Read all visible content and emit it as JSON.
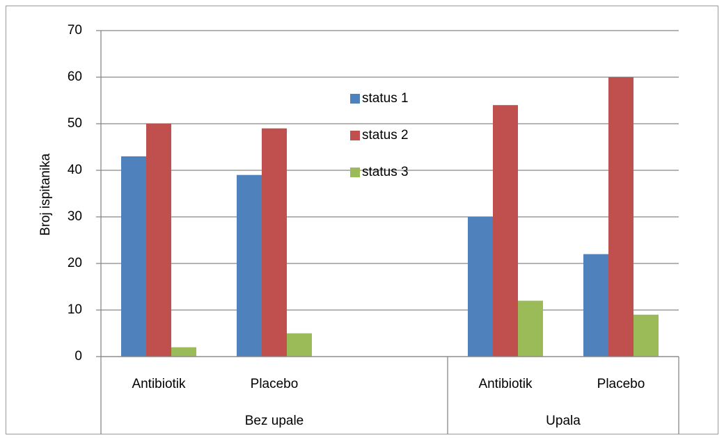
{
  "chart_data": {
    "type": "bar",
    "y_label": "Broj ispitanika",
    "groups": [
      {
        "name": "Bez upale",
        "categories": [
          "Antibiotik",
          "Placebo",
          null
        ]
      },
      {
        "name": "Upala",
        "categories": [
          "Antibiotik",
          "Placebo"
        ]
      }
    ],
    "series": [
      {
        "name": "status 1",
        "color": "#4f81bd",
        "values": [
          43,
          39,
          null,
          30,
          22
        ]
      },
      {
        "name": "status 2",
        "color": "#c0504d",
        "values": [
          50,
          49,
          null,
          54,
          60
        ]
      },
      {
        "name": "status 3",
        "color": "#9bbb59",
        "values": [
          2,
          5,
          null,
          12,
          9
        ]
      }
    ],
    "ylim": [
      0,
      70
    ],
    "yticks": [
      0,
      10,
      20,
      30,
      40,
      50,
      60,
      70
    ],
    "grid": true
  }
}
